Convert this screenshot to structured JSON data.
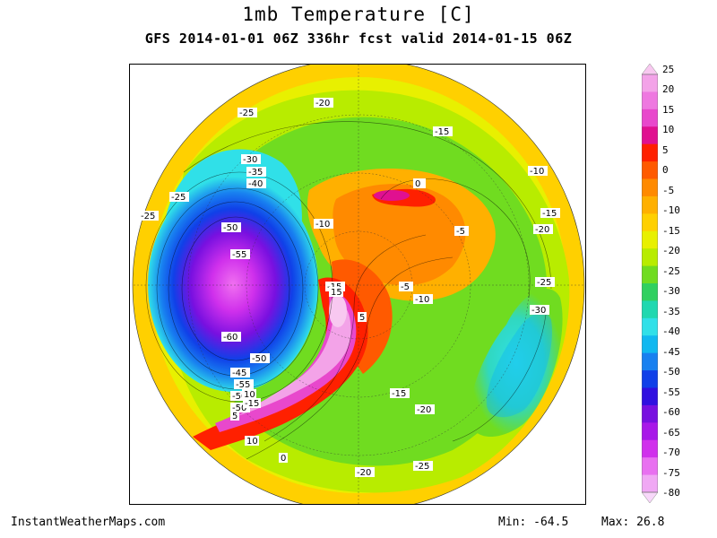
{
  "header": {
    "title": "1mb Temperature [C]",
    "subtitle": "GFS 2014-01-01 06Z 336hr fcst valid 2014-01-15 06Z"
  },
  "footer": {
    "credit": "InstantWeatherMaps.com",
    "min_label": "Min: -64.5",
    "max_label": "Max: 26.8"
  },
  "colorbar": {
    "ticks": [
      "25",
      "20",
      "15",
      "10",
      "5",
      "0",
      "-5",
      "-10",
      "-15",
      "-20",
      "-25",
      "-30",
      "-35",
      "-40",
      "-45",
      "-50",
      "-55",
      "-60",
      "-65",
      "-70",
      "-75",
      "-80"
    ],
    "colors": [
      "#f8c8f0",
      "#f3a3e8",
      "#ee78e0",
      "#e848cc",
      "#e01090",
      "#ff2000",
      "#ff5a00",
      "#ff8a00",
      "#ffb000",
      "#ffd000",
      "#e8f000",
      "#b8ec00",
      "#70dc20",
      "#30d060",
      "#20d8b0",
      "#30e0e8",
      "#10b8f0",
      "#1880f0",
      "#1040e8",
      "#3010e0",
      "#7810e0",
      "#a818e8",
      "#d030ec",
      "#e870f0",
      "#f0a8f4",
      "#f8d8fa"
    ]
  },
  "map": {
    "contour_labels": [
      "-25",
      "-20",
      "-15",
      "-30",
      "-35",
      "-40",
      "-10",
      "0",
      "-25",
      "-25",
      "-50",
      "-10",
      "-5",
      "-15",
      "-20",
      "-55",
      "-15",
      "-5",
      "-10",
      "-25",
      "-30",
      "15",
      "5",
      "-60",
      "-50",
      "-45",
      "-55",
      "-50",
      "-15",
      "-50",
      "10",
      "5",
      "-15",
      "-20",
      "10",
      "0",
      "-20",
      "-25"
    ]
  }
}
